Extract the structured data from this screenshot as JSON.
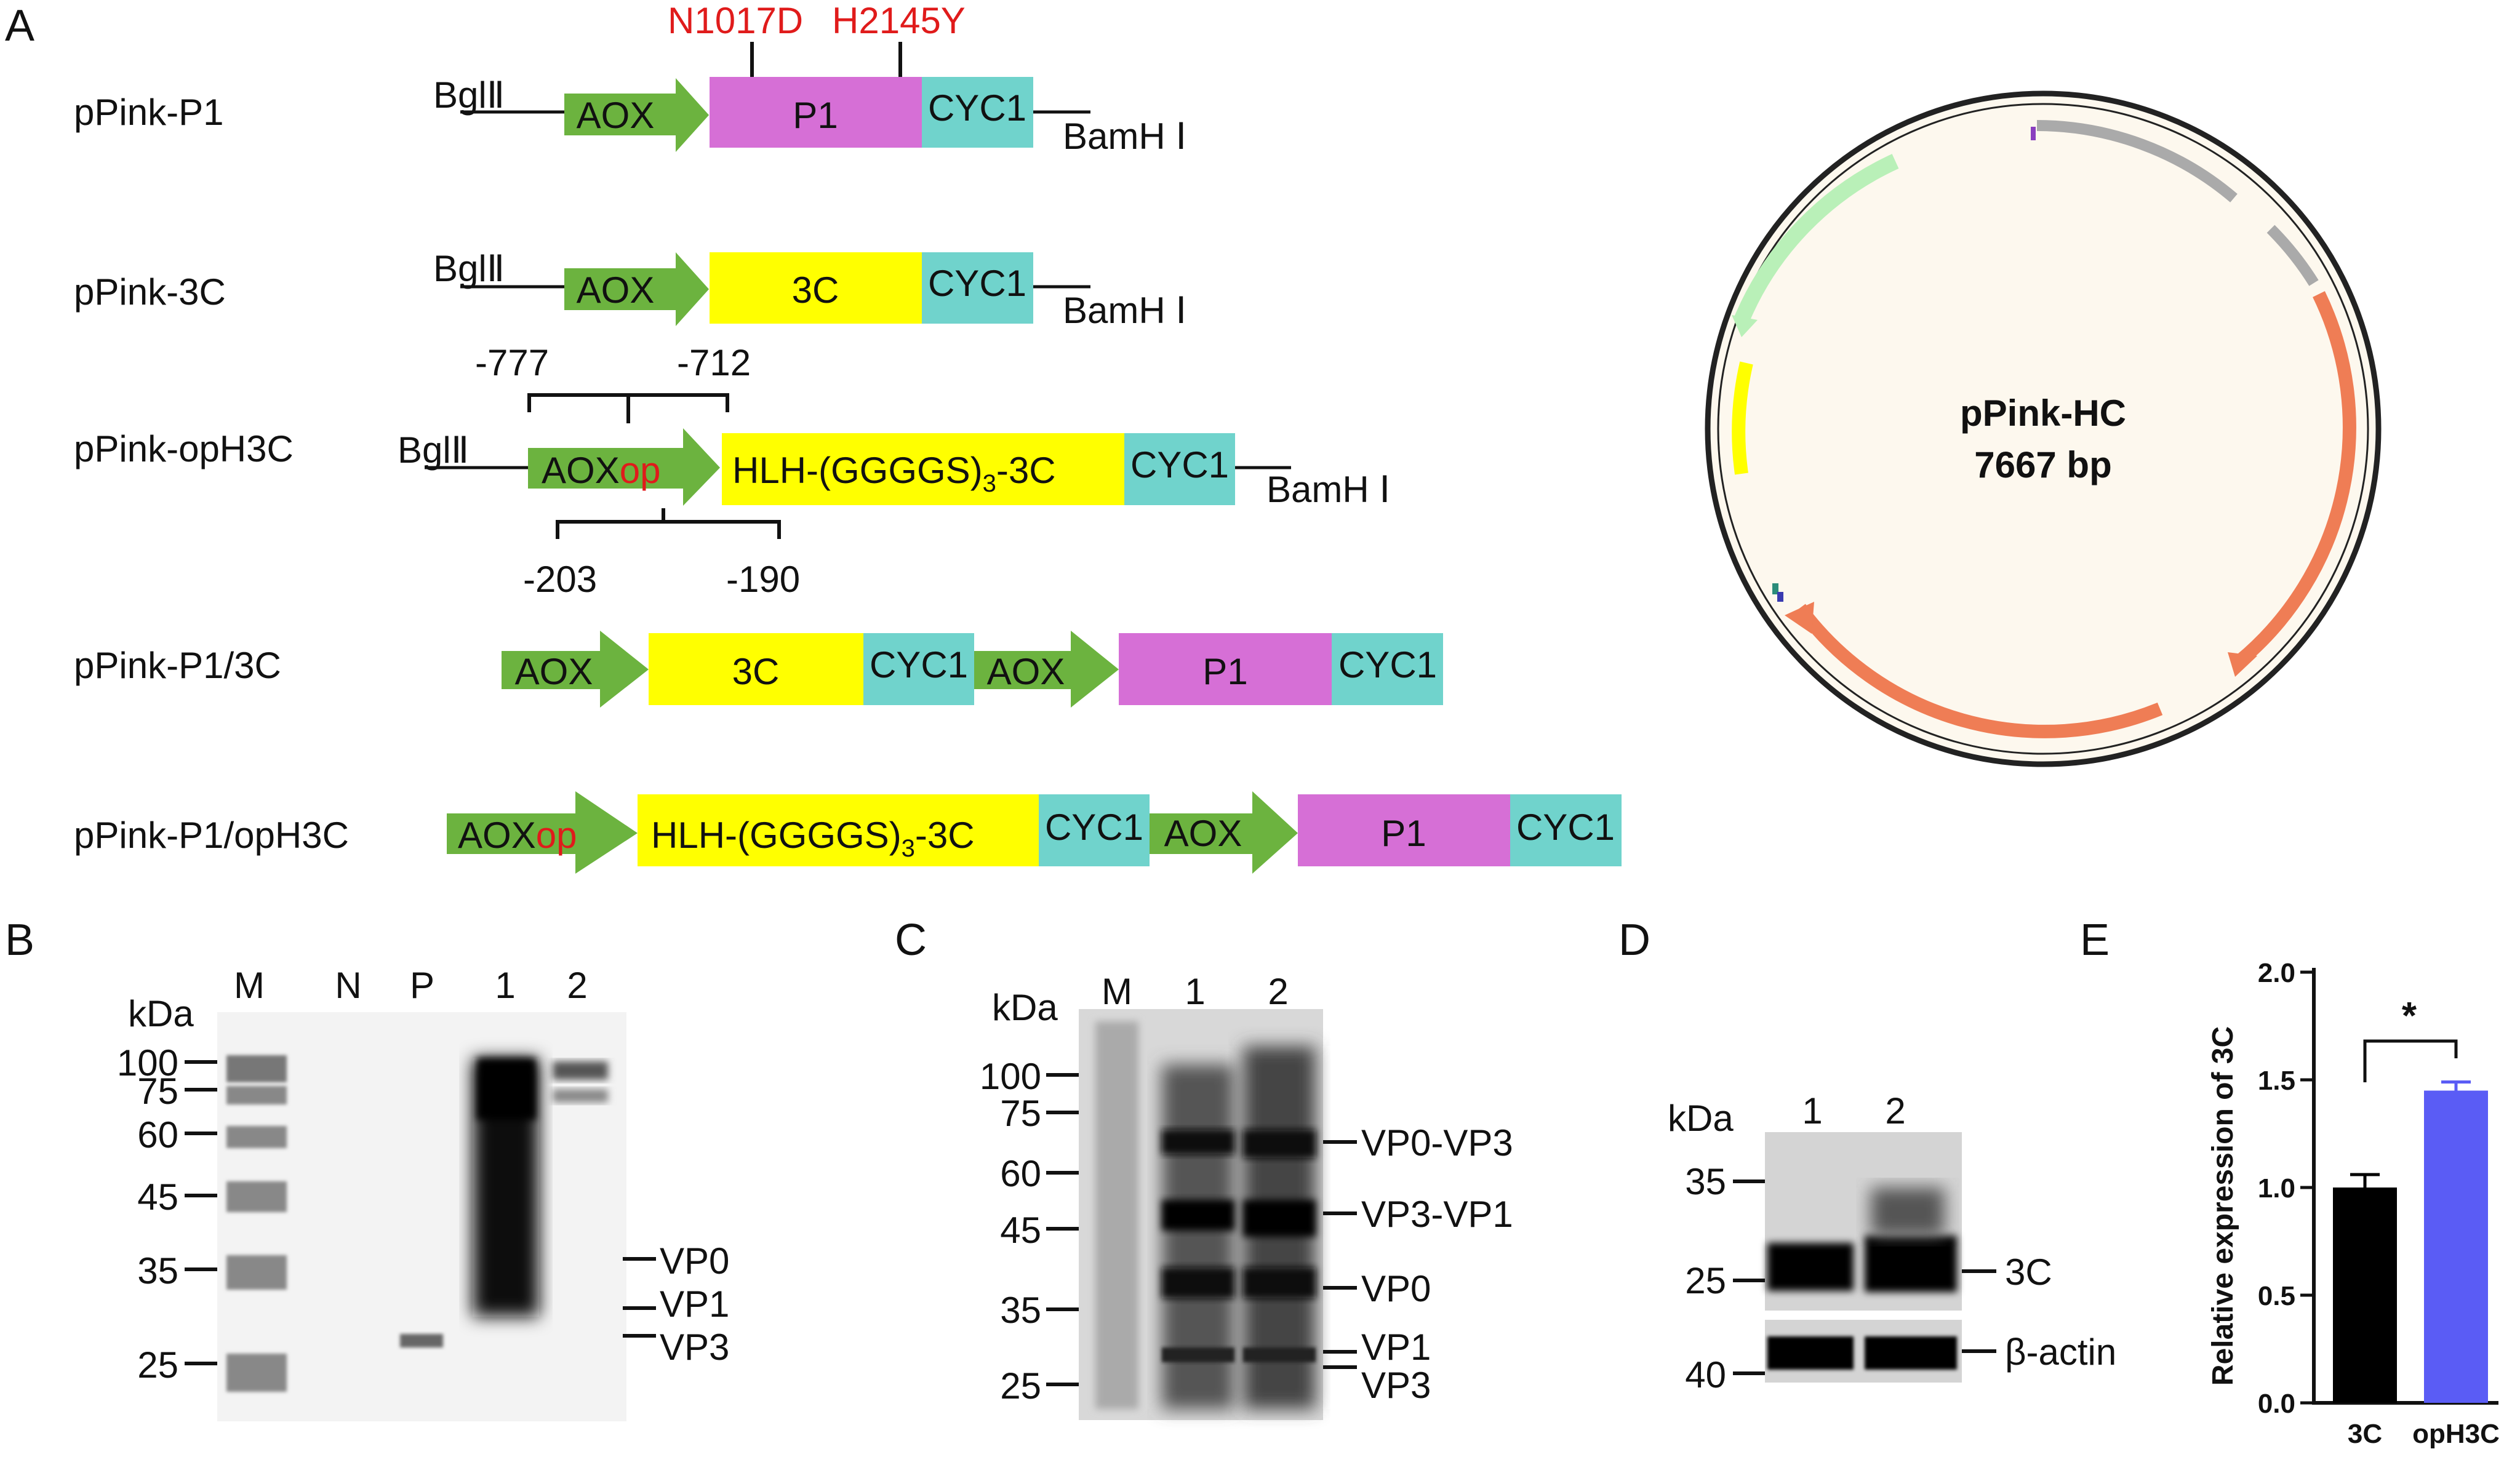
{
  "panels": [
    "A",
    "B",
    "C",
    "D",
    "E"
  ],
  "colors": {
    "promoter": "#6cb33f",
    "p1": "#d66fd6",
    "protease": "#ffff00",
    "terminator": "#70d3cc",
    "mutation_text": "#e01b1b",
    "plasmid_fill": "#fdf8ee",
    "plasmid_arrow": "#ef7d55",
    "bar_3C": "#000000",
    "bar_opH3C": "#5a5cf5"
  },
  "panelA": {
    "mutations": [
      "N1017D",
      "H2145Y"
    ],
    "constructs": [
      {
        "name": "pPink-P1",
        "left_site": "BglⅡ",
        "right_site": "BamH Ⅰ",
        "elements": [
          "AOX",
          "P1",
          "CYC1"
        ]
      },
      {
        "name": "pPink-3C",
        "left_site": "BglⅡ",
        "right_site": "BamH Ⅰ",
        "elements": [
          "AOX",
          "3C",
          "CYC1"
        ]
      },
      {
        "name": "pPink-opH3C",
        "left_site": "BglⅡ",
        "right_site": "BamH Ⅰ",
        "promoter_base": "AOX",
        "promoter_mod": "op",
        "cds_text": "HLH-(GGGGS)",
        "cds_sub": "3",
        "cds_tail": "-3C",
        "terminator": "CYC1"
      },
      {
        "name": "pPink-P1/3C",
        "elements": [
          "AOX",
          "3C",
          "CYC1",
          "AOX",
          "P1",
          "CYC1"
        ]
      },
      {
        "name": "pPink-P1/opH3C",
        "elements": [
          "AOX",
          "op",
          "HLH-(GGGGS)",
          "3",
          "-3C",
          "CYC1",
          "AOX",
          "P1",
          "CYC1"
        ]
      }
    ],
    "positions_top": [
      "-777",
      "-712"
    ],
    "positions_bottom": [
      "-203",
      "-190"
    ],
    "plasmid": {
      "name": "pPink-HC",
      "size": "7667 bp"
    }
  },
  "panelB": {
    "unit": "kDa",
    "lanes": [
      "M",
      "N",
      "P",
      "1",
      "2"
    ],
    "markers": [
      "100",
      "75",
      "60",
      "45",
      "35",
      "25"
    ],
    "bands": [
      "VP0",
      "VP1",
      "VP3"
    ]
  },
  "panelC": {
    "unit": "kDa",
    "lanes": [
      "M",
      "1",
      "2"
    ],
    "markers": [
      "100",
      "75",
      "60",
      "45",
      "35",
      "25"
    ],
    "bands": [
      "VP0-VP3",
      "VP3-VP1",
      "VP0",
      "VP1",
      "VP3"
    ]
  },
  "panelD": {
    "unit": "kDa",
    "lanes": [
      "1",
      "2"
    ],
    "markers": [
      "35",
      "25",
      "40"
    ],
    "bands": [
      "3C",
      "β-actin"
    ]
  },
  "chart_data": {
    "type": "bar",
    "categories": [
      "3C",
      "opH3C"
    ],
    "values": [
      1.0,
      1.45
    ],
    "errors": [
      0.06,
      0.04
    ],
    "ylabel": "Relative expression of 3C",
    "ylim": [
      0,
      2.0
    ],
    "yticks": [
      "0.0",
      "0.5",
      "1.0",
      "1.5",
      "2.0"
    ],
    "significance": "*",
    "grid": false
  }
}
